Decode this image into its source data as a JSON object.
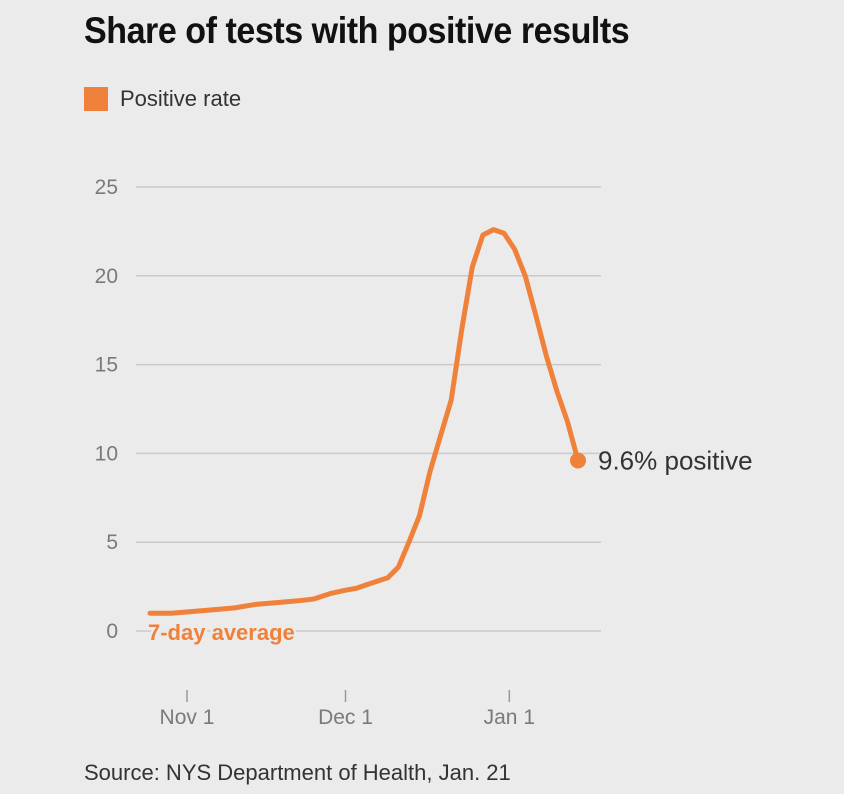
{
  "title": "Share of tests with positive results",
  "legend": {
    "label": "Positive rate",
    "color": "#f0813a"
  },
  "source": "Source: NYS Department of Health, Jan. 21",
  "endpoint_label": "9.6% positive",
  "annotation": "7-day average",
  "colors": {
    "series": "#f0813a",
    "grid": "#c9c9c9",
    "axis_text": "#7a7a7a",
    "background": "#ebebeb"
  },
  "chart_data": {
    "type": "line",
    "title": "Share of tests with positive results",
    "xlabel": "",
    "ylabel": "",
    "ylim": [
      0,
      25
    ],
    "yticks": [
      0,
      5,
      10,
      15,
      20,
      25
    ],
    "ytick_labels": [
      "0",
      "5",
      "10",
      "15",
      "20",
      "25"
    ],
    "xlim": [
      "2020-10-25",
      "2021-01-21"
    ],
    "xticks": [
      "2020-11-01",
      "2020-12-01",
      "2021-01-01"
    ],
    "xtick_labels": [
      "Nov 1",
      "Dec 1",
      "Jan 1"
    ],
    "grid": true,
    "legend_position": "top-left",
    "series": [
      {
        "name": "Positive rate",
        "x": [
          "2020-10-25",
          "2020-10-29",
          "2020-11-02",
          "2020-11-06",
          "2020-11-10",
          "2020-11-14",
          "2020-11-18",
          "2020-11-22",
          "2020-11-25",
          "2020-11-28",
          "2020-12-01",
          "2020-12-03",
          "2020-12-05",
          "2020-12-07",
          "2020-12-09",
          "2020-12-11",
          "2020-12-13",
          "2020-12-15",
          "2020-12-17",
          "2020-12-19",
          "2020-12-21",
          "2020-12-23",
          "2020-12-25",
          "2020-12-27",
          "2020-12-29",
          "2020-12-31",
          "2021-01-02",
          "2021-01-04",
          "2021-01-06",
          "2021-01-08",
          "2021-01-10",
          "2021-01-12",
          "2021-01-14",
          "2021-01-16",
          "2021-01-18",
          "2021-01-20"
        ],
        "y": [
          1.0,
          1.0,
          1.1,
          1.2,
          1.3,
          1.5,
          1.6,
          1.7,
          1.8,
          2.1,
          2.3,
          2.4,
          2.6,
          2.8,
          3.0,
          3.6,
          5.0,
          6.5,
          9.0,
          11.0,
          13.0,
          17.0,
          20.5,
          22.3,
          22.6,
          22.4,
          21.5,
          20.0,
          17.8,
          15.5,
          13.5,
          11.8,
          9.6,
          9.6,
          9.6,
          9.6
        ]
      }
    ],
    "endpoint": {
      "x": "2021-01-14",
      "y": 9.6,
      "label": "9.6% positive"
    },
    "annotations": [
      {
        "text": "7-day average",
        "position": "below start of line"
      }
    ]
  }
}
